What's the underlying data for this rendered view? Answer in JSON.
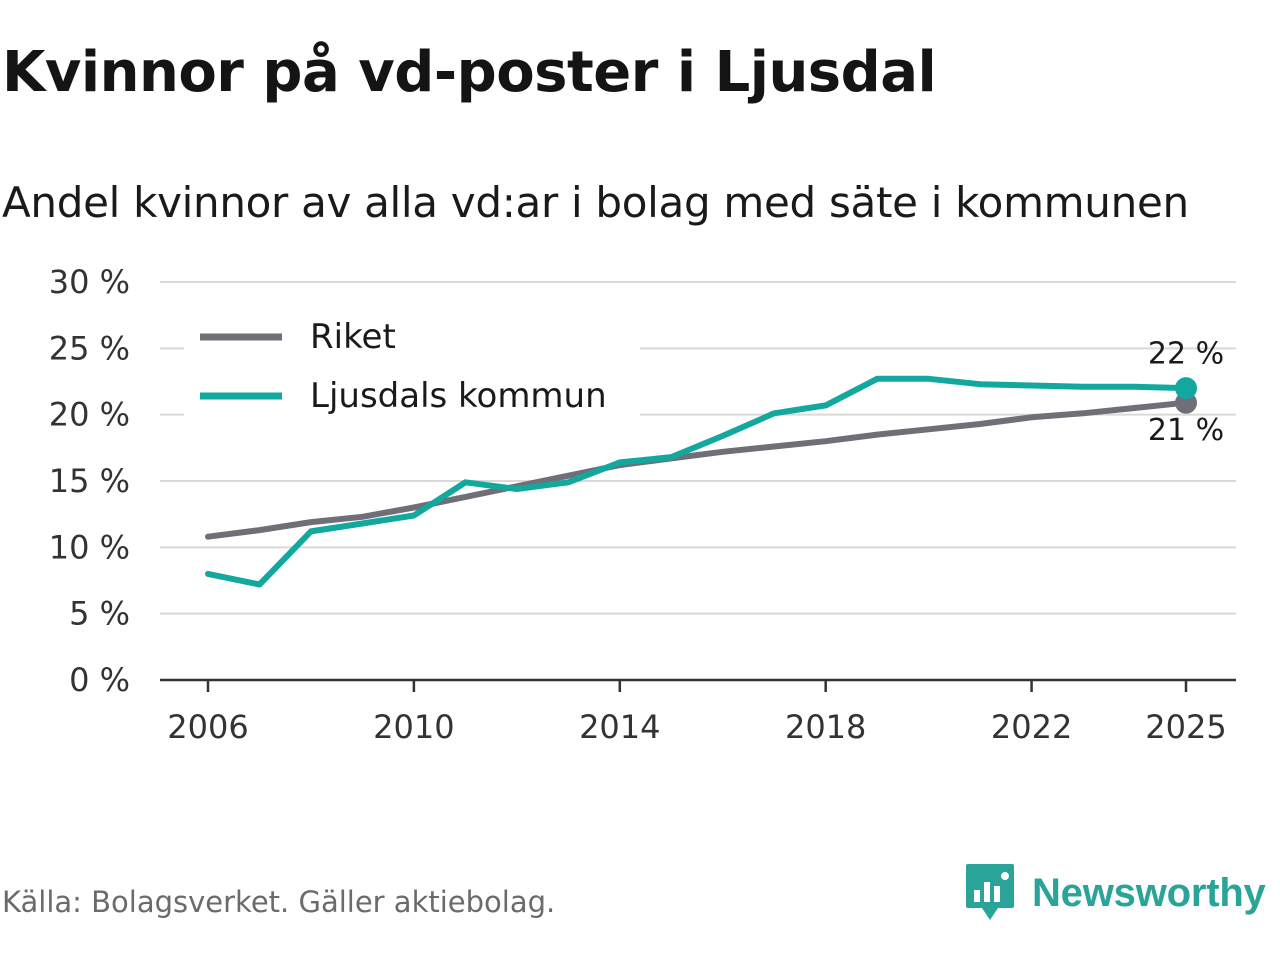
{
  "title": "Kvinnor på vd-poster i Ljusdal",
  "subtitle": "Andel kvinnor av alla vd:ar i bolag med säte i kommunen",
  "source": "Källa: Bolagsverket. Gäller aktiebolag.",
  "brand": {
    "name": "Newsworthy",
    "icon": "newsworthy-logo-icon"
  },
  "colors": {
    "riket": "#706e77",
    "kommun": "#13a89e",
    "grid": "#d9d9d9",
    "axis": "#333333",
    "brand": "#2aa398"
  },
  "chart_data": {
    "type": "line",
    "title": "Kvinnor på vd-poster i Ljusdal",
    "subtitle": "Andel kvinnor av alla vd:ar i bolag med säte i kommunen",
    "xlabel": "",
    "ylabel": "",
    "ylim": [
      0,
      30
    ],
    "xlim": [
      2006,
      2025
    ],
    "y_ticks": [
      0,
      5,
      10,
      15,
      20,
      25,
      30
    ],
    "y_tick_labels": [
      "0 %",
      "5 %",
      "10 %",
      "15 %",
      "20 %",
      "25 %",
      "30 %"
    ],
    "x_ticks": [
      2006,
      2010,
      2014,
      2018,
      2022,
      2025
    ],
    "x_tick_labels": [
      "2006",
      "2010",
      "2014",
      "2018",
      "2022",
      "2025"
    ],
    "grid": true,
    "legend_position": "top-left",
    "x": [
      2006,
      2007,
      2008,
      2009,
      2010,
      2011,
      2012,
      2013,
      2014,
      2015,
      2016,
      2017,
      2018,
      2019,
      2020,
      2021,
      2022,
      2023,
      2024,
      2025
    ],
    "series": [
      {
        "name": "Riket",
        "color": "#706e77",
        "values": [
          10.8,
          11.3,
          11.9,
          12.3,
          13.0,
          13.8,
          14.6,
          15.4,
          16.2,
          16.7,
          17.2,
          17.6,
          18.0,
          18.5,
          18.9,
          19.3,
          19.8,
          20.1,
          20.5,
          20.9
        ],
        "end_label": "21 %"
      },
      {
        "name": "Ljusdals kommun",
        "color": "#13a89e",
        "values": [
          8.0,
          7.2,
          11.2,
          11.8,
          12.4,
          14.9,
          14.4,
          14.9,
          16.4,
          16.8,
          18.4,
          20.1,
          20.7,
          22.7,
          22.7,
          22.3,
          22.2,
          22.1,
          22.1,
          22.0
        ],
        "end_label": "22 %"
      }
    ]
  }
}
